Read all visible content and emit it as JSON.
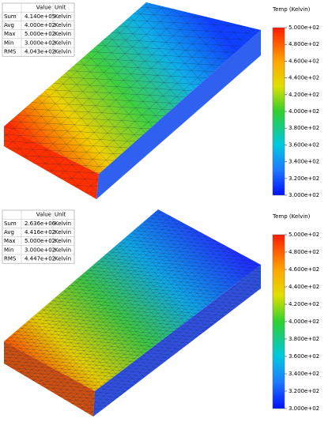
{
  "panels": [
    {
      "table": {
        "header": [
          "Value",
          "Unit"
        ],
        "rows": [
          [
            "Sum",
            "4.140e+05",
            "Kelvin"
          ],
          [
            "Avg",
            "4.000e+02",
            "Kelvin"
          ],
          [
            "Max",
            "5.000e+02",
            "Kelvin"
          ],
          [
            "Min",
            "3.000e+02",
            "Kelvin"
          ],
          [
            "RMS",
            "4.043e+02",
            "Kelvin"
          ]
        ]
      },
      "legend": {
        "title": "Temp (Kelvin)",
        "ticks": [
          "5.000e+02",
          "4.800e+02",
          "4.600e+02",
          "4.400e+02",
          "4.200e+02",
          "4.000e+02",
          "3.800e+02",
          "3.600e+02",
          "3.400e+02",
          "3.200e+02",
          "3.000e+02"
        ]
      }
    },
    {
      "table": {
        "header": [
          "Value",
          "Unit"
        ],
        "rows": [
          [
            "Sum",
            "2.636e+06",
            "Kelvin"
          ],
          [
            "Avg",
            "4.416e+02",
            "Kelvin"
          ],
          [
            "Max",
            "5.000e+02",
            "Kelvin"
          ],
          [
            "Min",
            "3.000e+02",
            "Kelvin"
          ],
          [
            "RMS",
            "4.447e+02",
            "Kelvin"
          ]
        ]
      },
      "legend": {
        "title": "Temp (Kelvin)",
        "ticks": [
          "5.000e+02",
          "4.800e+02",
          "4.600e+02",
          "4.400e+02",
          "4.200e+02",
          "4.000e+02",
          "3.800e+02",
          "3.600e+02",
          "3.400e+02",
          "3.200e+02",
          "3.000e+02"
        ]
      }
    }
  ]
}
